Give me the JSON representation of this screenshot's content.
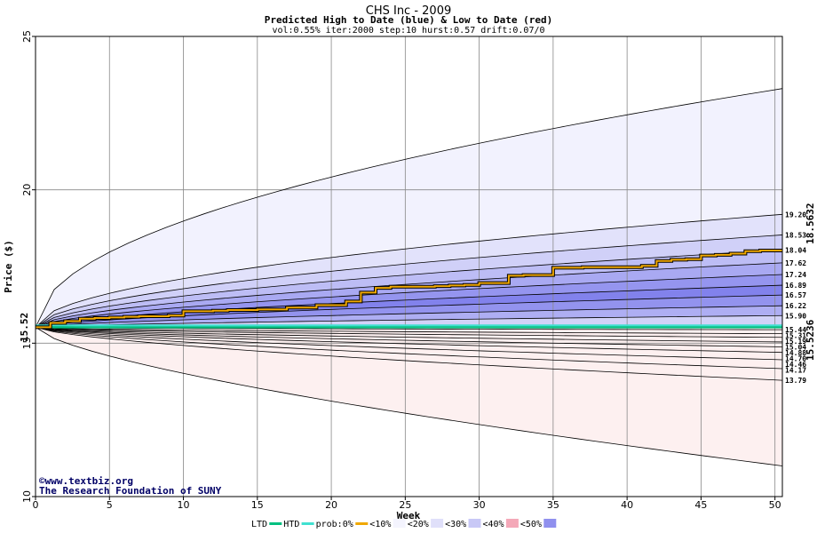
{
  "chart_data": {
    "type": "area",
    "title": "CHS Inc - 2009",
    "subtitle": "Predicted High to Date (blue) &  Low to Date (red)",
    "params": "vol:0.55% iter:2000 step:10 hurst:0.57 drift:0.07/0",
    "xlabel": "Week",
    "ylabel": "Price ($)",
    "xlim": [
      0,
      50.5
    ],
    "ylim": [
      10,
      25
    ],
    "x_ticks": [
      0,
      5,
      10,
      15,
      20,
      25,
      30,
      35,
      40,
      45,
      50
    ],
    "y_ticks": [
      10,
      15,
      20,
      25
    ],
    "start_price": 15.52,
    "start_label": "15.52",
    "grid": true,
    "high_bands_end": [
      {
        "label": "",
        "value": 23.3,
        "color": "#f2f2fe"
      },
      {
        "label": "19.20",
        "value": 19.2,
        "color": "#e2e2fb"
      },
      {
        "label": "18.53",
        "value": 18.53,
        "color": "#d0d0f8"
      },
      {
        "label": "18.04",
        "value": 18.04,
        "color": "#bdbdf5"
      },
      {
        "label": "17.62",
        "value": 17.62,
        "color": "#a9a9f2"
      },
      {
        "label": "17.24",
        "value": 17.24,
        "color": "#9595ef"
      },
      {
        "label": "16.89",
        "value": 16.89,
        "color": "#8282ec"
      },
      {
        "label": "16.57",
        "value": 16.57,
        "color": "#9393ee"
      },
      {
        "label": "16.22",
        "value": 16.22,
        "color": "#aeaef3"
      },
      {
        "label": "15.90",
        "value": 15.9,
        "color": "#d2d2f8"
      }
    ],
    "low_bands_end": [
      {
        "label": "15.44",
        "value": 15.44,
        "color": "#fcd0d0"
      },
      {
        "label": "15.31",
        "value": 15.31,
        "color": "#fbbcbc"
      },
      {
        "label": "15.19",
        "value": 15.19,
        "color": "#f9a6a6"
      },
      {
        "label": "15.04",
        "value": 15.04,
        "color": "#f79090"
      },
      {
        "label": "14.88",
        "value": 14.88,
        "color": "#f58080"
      },
      {
        "label": "14.70",
        "value": 14.7,
        "color": "#f79494"
      },
      {
        "label": "14.46",
        "value": 14.46,
        "color": "#f9abab"
      },
      {
        "label": "14.17",
        "value": 14.17,
        "color": "#fbc6c6"
      },
      {
        "label": "13.79",
        "value": 13.79,
        "color": "#fde0e0"
      },
      {
        "label": "",
        "value": 11.0,
        "color": "#fdf0f0"
      }
    ],
    "htd_series": {
      "name": "prob:0%",
      "x": [
        0,
        1,
        2,
        3,
        4,
        5,
        6,
        7,
        8,
        9,
        10,
        11,
        12,
        13,
        14,
        15,
        16,
        17,
        18,
        19,
        20,
        21,
        22,
        23,
        24,
        25,
        26,
        27,
        28,
        29,
        30,
        31,
        32,
        33,
        34,
        35,
        36,
        37,
        38,
        39,
        40,
        41,
        42,
        43,
        44,
        45,
        46,
        47,
        48,
        49,
        50
      ],
      "y": [
        15.52,
        15.66,
        15.72,
        15.8,
        15.82,
        15.84,
        15.86,
        15.88,
        15.88,
        15.9,
        16.04,
        16.04,
        16.06,
        16.08,
        16.08,
        16.1,
        16.1,
        16.16,
        16.16,
        16.24,
        16.24,
        16.36,
        16.65,
        16.8,
        16.84,
        16.84,
        16.84,
        16.86,
        16.88,
        16.9,
        16.96,
        16.96,
        17.2,
        17.22,
        17.22,
        17.46,
        17.46,
        17.48,
        17.48,
        17.48,
        17.48,
        17.52,
        17.68,
        17.72,
        17.74,
        17.86,
        17.88,
        17.92,
        18.0,
        18.02,
        18.02
      ]
    },
    "ltd_line": {
      "name": "LTD",
      "value": 15.52
    },
    "htd_line": {
      "name": "HTD",
      "value": 15.5236,
      "label": "15.5236"
    },
    "current_label": "18.5632",
    "legend": {
      "placement": "bottom",
      "items": [
        {
          "text": "LTD",
          "color": "#00c080"
        },
        {
          "text": "HTD",
          "color": "#40e0d0"
        },
        {
          "text": "prob:0%",
          "color": "#f0a800"
        },
        {
          "text": "<10%",
          "color": "#f4f4fe"
        },
        {
          "text": "<20%",
          "color": "#e0e0fa"
        },
        {
          "text": "<30%",
          "color": "#c8c8f6"
        },
        {
          "text": "<40%",
          "color": "#f4a8b8"
        },
        {
          "text": "<50%",
          "color": "#9090ee"
        }
      ]
    },
    "credit": [
      "©www.textbiz.org",
      "The Research Foundation of SUNY"
    ]
  }
}
